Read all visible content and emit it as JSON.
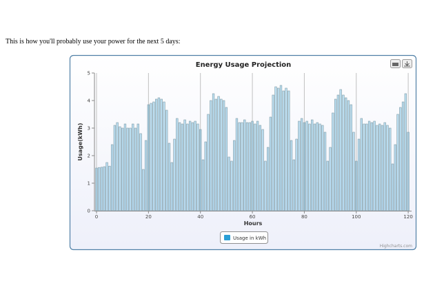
{
  "intro": "This is how you'll probably use your power for the next 5 days:",
  "chart_data": {
    "type": "bar",
    "title": "Energy Usage Projection",
    "x_label": "Hours",
    "y_label": "Usage(kWh)",
    "credits": "Highcharts.com",
    "x": [
      0,
      1,
      2,
      3,
      4,
      5,
      6,
      7,
      8,
      9,
      10,
      11,
      12,
      13,
      14,
      15,
      16,
      17,
      18,
      19,
      20,
      21,
      22,
      23,
      24,
      25,
      26,
      27,
      28,
      29,
      30,
      31,
      32,
      33,
      34,
      35,
      36,
      37,
      38,
      39,
      40,
      41,
      42,
      43,
      44,
      45,
      46,
      47,
      48,
      49,
      50,
      51,
      52,
      53,
      54,
      55,
      56,
      57,
      58,
      59,
      60,
      61,
      62,
      63,
      64,
      65,
      66,
      67,
      68,
      69,
      70,
      71,
      72,
      73,
      74,
      75,
      76,
      77,
      78,
      79,
      80,
      81,
      82,
      83,
      84,
      85,
      86,
      87,
      88,
      89,
      90,
      91,
      92,
      93,
      94,
      95,
      96,
      97,
      98,
      99,
      100,
      101,
      102,
      103,
      104,
      105,
      106,
      107,
      108,
      109,
      110,
      111,
      112,
      113,
      114,
      115,
      116,
      117,
      118,
      119,
      120
    ],
    "series": [
      {
        "name": "Usage in kWh",
        "color": "#2a9fd6",
        "values": [
          1.55,
          1.57,
          1.58,
          1.6,
          1.75,
          1.62,
          2.4,
          3.1,
          3.2,
          3.05,
          3.0,
          3.15,
          3.0,
          3.0,
          3.15,
          3.0,
          3.15,
          2.8,
          1.5,
          2.55,
          3.85,
          3.9,
          3.95,
          4.05,
          4.1,
          4.05,
          3.95,
          3.65,
          2.45,
          1.75,
          2.6,
          3.35,
          3.2,
          3.15,
          3.3,
          3.15,
          3.25,
          3.2,
          3.25,
          3.15,
          2.95,
          1.85,
          2.5,
          3.5,
          4.0,
          4.25,
          4.05,
          4.15,
          4.05,
          4.0,
          3.75,
          1.95,
          1.8,
          2.55,
          3.35,
          3.2,
          3.2,
          3.3,
          3.2,
          3.2,
          3.25,
          3.15,
          3.25,
          3.1,
          2.95,
          1.8,
          2.3,
          3.4,
          4.2,
          4.5,
          4.45,
          4.55,
          4.35,
          4.45,
          4.35,
          2.55,
          1.85,
          2.6,
          3.25,
          3.35,
          3.2,
          3.25,
          3.15,
          3.3,
          3.15,
          3.2,
          3.15,
          3.1,
          2.85,
          1.8,
          2.3,
          3.55,
          4.05,
          4.2,
          4.4,
          4.2,
          4.1,
          4.0,
          3.85,
          2.85,
          1.8,
          2.6,
          3.35,
          3.15,
          3.15,
          3.25,
          3.2,
          3.25,
          3.1,
          3.15,
          3.1,
          3.2,
          3.1,
          3.0,
          1.7,
          2.4,
          3.5,
          3.75,
          3.95,
          4.25,
          2.85
        ]
      }
    ],
    "xlim": [
      -0.8,
      121.3
    ],
    "xticks": [
      0,
      20,
      40,
      60,
      80,
      100,
      120
    ],
    "ylim": [
      0,
      5
    ],
    "yticks": [
      0,
      1,
      2,
      3,
      4,
      5
    ],
    "grid": "x",
    "legend": "bottom"
  }
}
